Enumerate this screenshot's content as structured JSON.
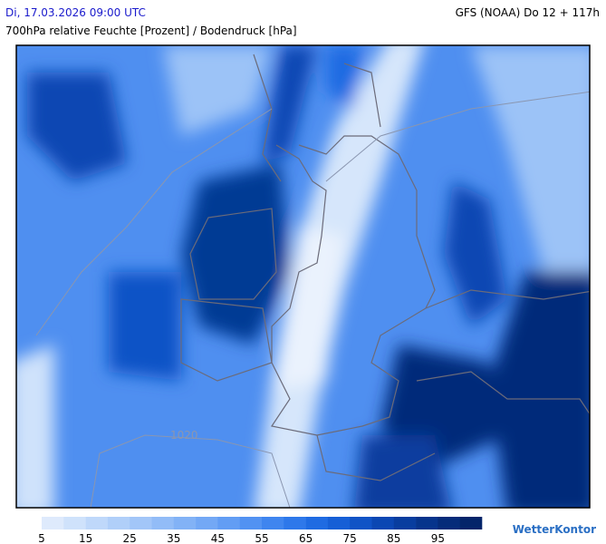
{
  "header": {
    "valid_time": "Di, 17.03.2026 09:00 UTC",
    "model_run": "GFS (NOAA) Do 12 + 117h",
    "subtitle": "700hPa relative Feuchte [Prozent] / Bodendruck [hPa]"
  },
  "map": {
    "isobar_label": "1020"
  },
  "legend": {
    "ticks": [
      5,
      15,
      25,
      35,
      45,
      55,
      65,
      75,
      85,
      95
    ],
    "colors": [
      "#deeafc",
      "#cfe2fb",
      "#bfd8fa",
      "#b0cff9",
      "#a2c6f8",
      "#92bcf7",
      "#82b2f6",
      "#73a8f5",
      "#629df4",
      "#5292f2",
      "#3f85ef",
      "#2e78ea",
      "#1f6be2",
      "#165fd6",
      "#1053c6",
      "#0b47b3",
      "#083d9f",
      "#06348c",
      "#052c7a",
      "#04256a"
    ]
  },
  "brand": "WetterKontor"
}
